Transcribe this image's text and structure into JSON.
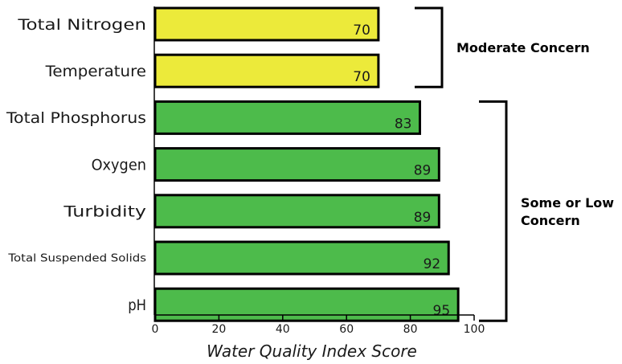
{
  "chart_data": {
    "type": "bar",
    "orientation": "horizontal",
    "categories": [
      "Total Nitrogen",
      "Temperature",
      "Total Phosphorus",
      "Oxygen",
      "Turbidity",
      "Total Suspended Solids",
      "pH"
    ],
    "values": [
      70,
      70,
      83,
      89,
      89,
      92,
      95
    ],
    "bar_colors": [
      "#ecea3a",
      "#ecea3a",
      "#4dbb4b",
      "#4dbb4b",
      "#4dbb4b",
      "#4dbb4b",
      "#4dbb4b"
    ],
    "xlabel": "Water Quality Index Score",
    "xlim": [
      0,
      100
    ],
    "xticks": [
      0,
      20,
      40,
      60,
      80,
      100
    ],
    "grid": false,
    "groups": [
      {
        "label_lines": [
          "Moderate Concern"
        ],
        "categories": [
          "Total Nitrogen",
          "Temperature"
        ]
      },
      {
        "label_lines": [
          "Some or Low",
          "Concern"
        ],
        "categories": [
          "Total Phosphorus",
          "Oxygen",
          "Turbidity",
          "Total Suspended Solids",
          "pH"
        ]
      }
    ]
  }
}
